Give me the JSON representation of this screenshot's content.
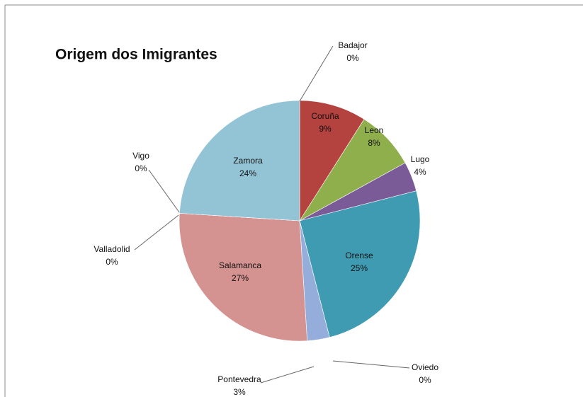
{
  "chart_data": {
    "type": "pie",
    "title": "Origem dos Imigrantes",
    "categories": [
      "Badajor",
      "Coruña",
      "Leon",
      "Lugo",
      "Orense",
      "Oviedo",
      "Pontevedra",
      "Salamanca",
      "Valladolid",
      "Vigo",
      "Zamora"
    ],
    "values": [
      0,
      9,
      8,
      4,
      25,
      0,
      3,
      27,
      0,
      0,
      24
    ],
    "value_labels": [
      "0%",
      "9%",
      "8%",
      "4%",
      "25%",
      "0%",
      "3%",
      "27%",
      "0%",
      "0%",
      "24%"
    ],
    "colors": [
      "#4f81bd",
      "#b4423f",
      "#8fae4c",
      "#7a5a97",
      "#3f9bb2",
      "#f08a35",
      "#94addb",
      "#d49290",
      "#c3d69b",
      "#b3a2c7",
      "#93c4d6"
    ]
  }
}
